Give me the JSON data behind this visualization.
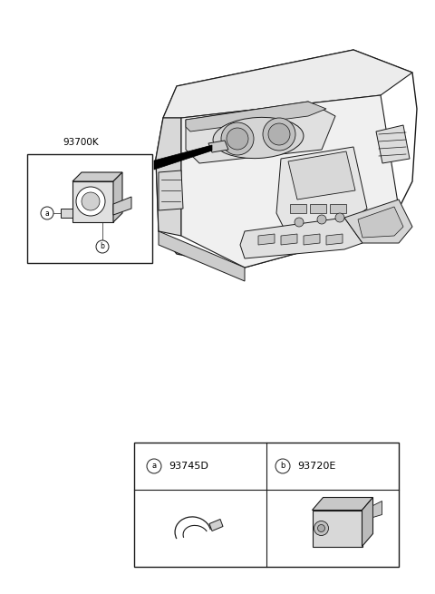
{
  "bg_color": "#ffffff",
  "label_93700K": "93700K",
  "label_93745D": "93745D",
  "label_93720E": "93720E",
  "line_color": "#1a1a1a",
  "fill_light": "#e8e8e8",
  "fill_mid": "#d0d0d0",
  "fill_dark": "#b0b0b0"
}
